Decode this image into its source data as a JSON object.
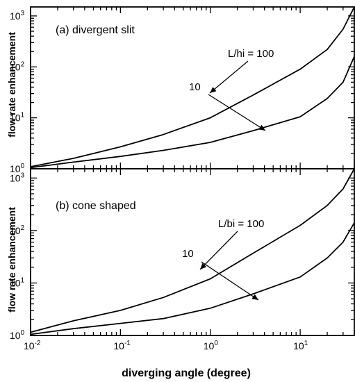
{
  "chart_data": [
    {
      "type": "line",
      "panel_label": "(a) divergent slit",
      "xscale": "log",
      "yscale": "log",
      "xlim": [
        0.01,
        40
      ],
      "ylim": [
        1,
        1500
      ],
      "xlabel": "",
      "ylabel": "flow rate enhancement",
      "yticks": [
        {
          "value": 1,
          "base": "10",
          "exp": "0"
        },
        {
          "value": 10,
          "base": "10",
          "exp": "1"
        },
        {
          "value": 100,
          "base": "10",
          "exp": "2"
        },
        {
          "value": 1000,
          "base": "10",
          "exp": "3"
        }
      ],
      "series": [
        {
          "name": "L/hi = 100",
          "x": [
            0.01,
            0.03,
            0.1,
            0.3,
            1,
            3,
            10,
            20,
            30,
            40
          ],
          "y": [
            1.1,
            1.6,
            2.7,
            4.7,
            10,
            28,
            90,
            220,
            550,
            1500
          ]
        },
        {
          "name": "10",
          "x": [
            0.01,
            0.03,
            0.1,
            0.3,
            1,
            3,
            10,
            20,
            30,
            40
          ],
          "y": [
            1.05,
            1.35,
            1.75,
            2.3,
            3.3,
            5.6,
            10.5,
            24,
            50,
            160
          ]
        }
      ],
      "annotations": [
        {
          "text": "L/hi = 100",
          "target": "L/hi = 100"
        },
        {
          "text": "10",
          "target": "10"
        }
      ]
    },
    {
      "type": "line",
      "panel_label": "(b) cone shaped",
      "xscale": "log",
      "yscale": "log",
      "xlim": [
        0.01,
        40
      ],
      "ylim": [
        1,
        1500
      ],
      "xlabel": "diverging angle (degree)",
      "ylabel": "flow rate enhancement",
      "xticks": [
        {
          "value": 0.01,
          "base": "10",
          "exp": "-2"
        },
        {
          "value": 0.1,
          "base": "10",
          "exp": "-1"
        },
        {
          "value": 1,
          "base": "10",
          "exp": "0"
        },
        {
          "value": 10,
          "base": "10",
          "exp": "1"
        }
      ],
      "yticks": [
        {
          "value": 1,
          "base": "10",
          "exp": "0"
        },
        {
          "value": 10,
          "base": "10",
          "exp": "1"
        },
        {
          "value": 100,
          "base": "10",
          "exp": "2"
        },
        {
          "value": 1000,
          "base": "10",
          "exp": "3"
        }
      ],
      "series": [
        {
          "name": "L/bi = 100",
          "x": [
            0.01,
            0.03,
            0.1,
            0.3,
            1,
            3,
            10,
            20,
            30,
            40
          ],
          "y": [
            1.15,
            1.9,
            3.0,
            5.3,
            12,
            37,
            125,
            300,
            620,
            1500
          ]
        },
        {
          "name": "10",
          "x": [
            0.01,
            0.03,
            0.1,
            0.3,
            1,
            3,
            10,
            20,
            30,
            40
          ],
          "y": [
            1.05,
            1.35,
            1.7,
            2.1,
            3.3,
            6.2,
            13,
            30,
            60,
            140
          ]
        }
      ],
      "annotations": [
        {
          "text": "L/bi = 100",
          "target": "L/bi = 100"
        },
        {
          "text": "10",
          "target": "10"
        }
      ]
    }
  ]
}
